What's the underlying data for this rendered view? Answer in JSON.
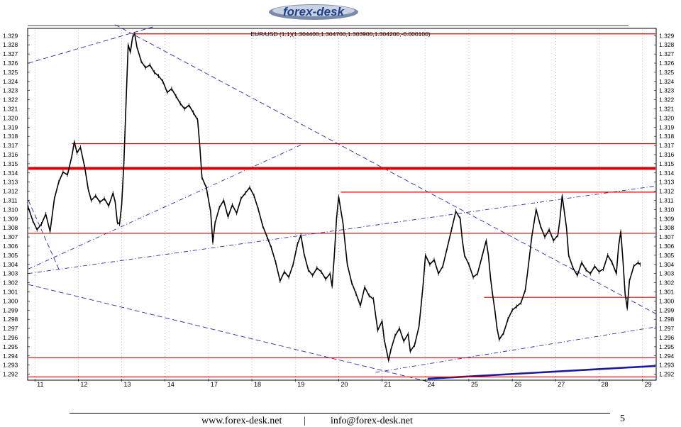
{
  "header": {
    "logo_text": "forex-desk"
  },
  "chart_data": {
    "type": "line",
    "title": "EUR/USD (1:1)(1.304400,1.304700,1.303900,1.304200,-0.000100)",
    "xlabel": "",
    "ylabel": "",
    "x_ticks": [
      "11",
      "12",
      "13",
      "14",
      "17",
      "18",
      "19",
      "20",
      "21",
      "24",
      "25",
      "26",
      "27",
      "28",
      "29"
    ],
    "y_ticks": [
      "1.329",
      "1.328",
      "1.327",
      "1.326",
      "1.325",
      "1.324",
      "1.323",
      "1.322",
      "1.321",
      "1.320",
      "1.319",
      "1.318",
      "1.317",
      "1.316",
      "1.315",
      "1.314",
      "1.313",
      "1.312",
      "1.311",
      "1.310",
      "1.309",
      "1.308",
      "1.307",
      "1.306",
      "1.305",
      "1.304",
      "1.303",
      "1.302",
      "1.301",
      "1.300",
      "1.299",
      "1.298",
      "1.297",
      "1.296",
      "1.295",
      "1.294",
      "1.293",
      "1.292"
    ],
    "ylim": [
      1.2915,
      1.3298
    ],
    "xlim": [
      0,
      14.45
    ],
    "grid": "vertical dashed",
    "series": [
      {
        "values": [
          [
            0.0,
            1.3102
          ],
          [
            0.1,
            1.3088
          ],
          [
            0.2,
            1.3078
          ],
          [
            0.3,
            1.3084
          ],
          [
            0.4,
            1.3095
          ],
          [
            0.5,
            1.3076
          ],
          [
            0.6,
            1.3112
          ],
          [
            0.7,
            1.313
          ],
          [
            0.8,
            1.3141
          ],
          [
            0.9,
            1.3138
          ],
          [
            1.0,
            1.3158
          ],
          [
            1.06,
            1.3174
          ],
          [
            1.12,
            1.3162
          ],
          [
            1.2,
            1.3168
          ],
          [
            1.3,
            1.3146
          ],
          [
            1.38,
            1.3122
          ],
          [
            1.45,
            1.311
          ],
          [
            1.55,
            1.3115
          ],
          [
            1.65,
            1.3108
          ],
          [
            1.75,
            1.3112
          ],
          [
            1.85,
            1.3104
          ],
          [
            1.95,
            1.3118
          ],
          [
            2.0,
            1.3108
          ],
          [
            2.05,
            1.3086
          ],
          [
            2.1,
            1.3084
          ],
          [
            2.15,
            1.3105
          ],
          [
            2.2,
            1.315
          ],
          [
            2.25,
            1.3215
          ],
          [
            2.3,
            1.328
          ],
          [
            2.35,
            1.3272
          ],
          [
            2.4,
            1.3288
          ],
          [
            2.45,
            1.3292
          ],
          [
            2.5,
            1.3278
          ],
          [
            2.6,
            1.3262
          ],
          [
            2.7,
            1.3255
          ],
          [
            2.8,
            1.3258
          ],
          [
            2.9,
            1.325
          ],
          [
            3.0,
            1.3246
          ],
          [
            3.1,
            1.324
          ],
          [
            3.2,
            1.3228
          ],
          [
            3.3,
            1.3232
          ],
          [
            3.4,
            1.3224
          ],
          [
            3.5,
            1.3216
          ],
          [
            3.6,
            1.321
          ],
          [
            3.7,
            1.3214
          ],
          [
            3.8,
            1.3206
          ],
          [
            3.9,
            1.3198
          ],
          [
            3.95,
            1.317
          ],
          [
            4.0,
            1.3135
          ],
          [
            4.1,
            1.3124
          ],
          [
            4.2,
            1.3098
          ],
          [
            4.25,
            1.3064
          ],
          [
            4.3,
            1.3085
          ],
          [
            4.4,
            1.3102
          ],
          [
            4.5,
            1.311
          ],
          [
            4.6,
            1.3092
          ],
          [
            4.7,
            1.3105
          ],
          [
            4.8,
            1.3096
          ],
          [
            4.9,
            1.3112
          ],
          [
            5.0,
            1.3118
          ],
          [
            5.1,
            1.3124
          ],
          [
            5.2,
            1.3115
          ],
          [
            5.3,
            1.31
          ],
          [
            5.4,
            1.3082
          ],
          [
            5.5,
            1.307
          ],
          [
            5.6,
            1.3058
          ],
          [
            5.7,
            1.3042
          ],
          [
            5.8,
            1.3022
          ],
          [
            5.9,
            1.3032
          ],
          [
            6.0,
            1.3026
          ],
          [
            6.1,
            1.304
          ],
          [
            6.2,
            1.3062
          ],
          [
            6.28,
            1.3072
          ],
          [
            6.35,
            1.3052
          ],
          [
            6.45,
            1.3034
          ],
          [
            6.55,
            1.3028
          ],
          [
            6.65,
            1.3036
          ],
          [
            6.75,
            1.3032
          ],
          [
            6.85,
            1.3024
          ],
          [
            6.95,
            1.303
          ],
          [
            7.0,
            1.3016
          ],
          [
            7.05,
            1.305
          ],
          [
            7.1,
            1.309
          ],
          [
            7.15,
            1.3114
          ],
          [
            7.25,
            1.3085
          ],
          [
            7.3,
            1.3062
          ],
          [
            7.35,
            1.304
          ],
          [
            7.45,
            1.302
          ],
          [
            7.55,
            1.3008
          ],
          [
            7.65,
            1.2995
          ],
          [
            7.75,
            1.3015
          ],
          [
            7.85,
            1.3006
          ],
          [
            7.95,
            1.3002
          ],
          [
            8.0,
            1.2985
          ],
          [
            8.05,
            1.2968
          ],
          [
            8.15,
            1.2978
          ],
          [
            8.2,
            1.2958
          ],
          [
            8.3,
            1.2935
          ],
          [
            8.35,
            1.2946
          ],
          [
            8.45,
            1.2962
          ],
          [
            8.55,
            1.297
          ],
          [
            8.65,
            1.2956
          ],
          [
            8.75,
            1.2964
          ],
          [
            8.8,
            1.2945
          ],
          [
            8.9,
            1.2952
          ],
          [
            9.0,
            1.2972
          ],
          [
            9.05,
            1.2995
          ],
          [
            9.1,
            1.302
          ],
          [
            9.15,
            1.305
          ],
          [
            9.25,
            1.304
          ],
          [
            9.35,
            1.3045
          ],
          [
            9.45,
            1.303
          ],
          [
            9.55,
            1.3038
          ],
          [
            9.65,
            1.3058
          ],
          [
            9.75,
            1.3078
          ],
          [
            9.85,
            1.3098
          ],
          [
            9.95,
            1.309
          ],
          [
            10.0,
            1.3066
          ],
          [
            10.05,
            1.305
          ],
          [
            10.15,
            1.304
          ],
          [
            10.25,
            1.3026
          ],
          [
            10.35,
            1.303
          ],
          [
            10.45,
            1.3048
          ],
          [
            10.55,
            1.3066
          ],
          [
            10.6,
            1.305
          ],
          [
            10.65,
            1.3025
          ],
          [
            10.7,
            1.3006
          ],
          [
            10.75,
            1.299
          ],
          [
            10.8,
            1.297
          ],
          [
            10.85,
            1.2958
          ],
          [
            10.95,
            1.2965
          ],
          [
            11.05,
            1.298
          ],
          [
            11.15,
            1.299
          ],
          [
            11.25,
            1.2994
          ],
          [
            11.35,
            1.2998
          ],
          [
            11.45,
            1.3012
          ],
          [
            11.5,
            1.303
          ],
          [
            11.55,
            1.305
          ],
          [
            11.6,
            1.307
          ],
          [
            11.7,
            1.31
          ],
          [
            11.8,
            1.3082
          ],
          [
            11.9,
            1.307
          ],
          [
            12.0,
            1.3078
          ],
          [
            12.1,
            1.3066
          ],
          [
            12.2,
            1.3072
          ],
          [
            12.25,
            1.309
          ],
          [
            12.3,
            1.3115
          ],
          [
            12.4,
            1.308
          ],
          [
            12.45,
            1.305
          ],
          [
            12.55,
            1.3036
          ],
          [
            12.65,
            1.3028
          ],
          [
            12.75,
            1.3042
          ],
          [
            12.85,
            1.3034
          ],
          [
            12.95,
            1.303
          ],
          [
            13.05,
            1.3038
          ],
          [
            13.15,
            1.3032
          ],
          [
            13.25,
            1.3035
          ],
          [
            13.35,
            1.305
          ],
          [
            13.45,
            1.3042
          ],
          [
            13.55,
            1.303
          ],
          [
            13.6,
            1.306
          ],
          [
            13.65,
            1.3076
          ],
          [
            13.7,
            1.3045
          ],
          [
            13.75,
            1.3008
          ],
          [
            13.8,
            1.2992
          ],
          [
            13.85,
            1.3022
          ],
          [
            13.95,
            1.3038
          ],
          [
            14.05,
            1.3042
          ],
          [
            14.1,
            1.304
          ]
        ]
      }
    ],
    "horizontal_levels": [
      {
        "price": 1.3292,
        "color": "#e00000",
        "width": 1.2
      },
      {
        "price": 1.3172,
        "color": "#e00000",
        "width": 1.2
      },
      {
        "price": 1.3145,
        "color": "#e00000",
        "width": 4
      },
      {
        "price": 1.3119,
        "color": "#e00000",
        "width": 1.2
      },
      {
        "price": 1.3074,
        "color": "#e00000",
        "width": 1.2
      },
      {
        "price": 1.3004,
        "color": "#e00000",
        "width": 1.2
      },
      {
        "price": 1.2938,
        "color": "#e00000",
        "width": 1.2
      },
      {
        "price": 1.2917,
        "color": "#e00000",
        "width": 1.2
      }
    ],
    "colors": {
      "price": "#000000",
      "levels": "#e00000",
      "trendlines": "#2a2aa8",
      "grid": "#8a8a8a"
    }
  },
  "footer": {
    "website": "www.forex-desk.net",
    "separator": "|",
    "email": "info@forex-desk.net",
    "page_number": "5"
  }
}
